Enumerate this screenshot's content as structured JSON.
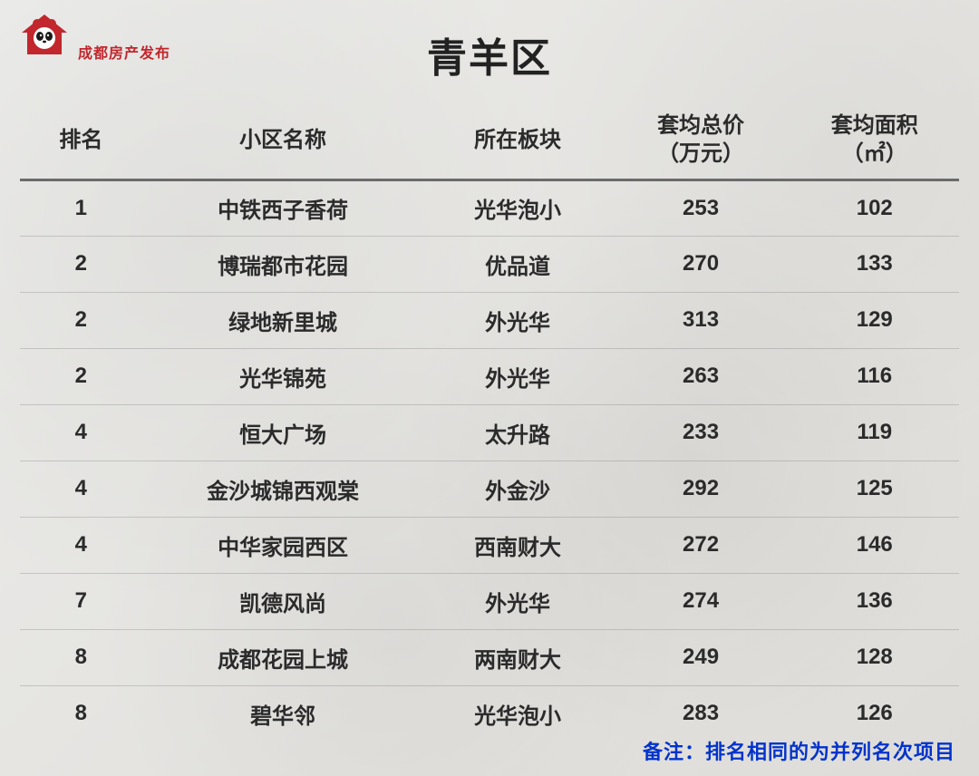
{
  "logo": {
    "brand_text": "成都房产发布"
  },
  "title": "青羊区",
  "columns": [
    {
      "key": "rank",
      "label": "排名",
      "class": "col-rank"
    },
    {
      "key": "name",
      "label": "小区名称",
      "class": "col-name"
    },
    {
      "key": "block",
      "label": "所在板块",
      "class": "col-block"
    },
    {
      "key": "price",
      "label": "套均总价\n（万元）",
      "class": "col-price"
    },
    {
      "key": "area",
      "label": "套均面积\n（㎡）",
      "class": "col-area"
    }
  ],
  "rows": [
    {
      "rank": "1",
      "name": "中铁西子香荷",
      "block": "光华泡小",
      "price": "253",
      "area": "102"
    },
    {
      "rank": "2",
      "name": "博瑞都市花园",
      "block": "优品道",
      "price": "270",
      "area": "133"
    },
    {
      "rank": "2",
      "name": "绿地新里城",
      "block": "外光华",
      "price": "313",
      "area": "129"
    },
    {
      "rank": "2",
      "name": "光华锦苑",
      "block": "外光华",
      "price": "263",
      "area": "116"
    },
    {
      "rank": "4",
      "name": "恒大广场",
      "block": "太升路",
      "price": "233",
      "area": "119"
    },
    {
      "rank": "4",
      "name": "金沙城锦西观棠",
      "block": "外金沙",
      "price": "292",
      "area": "125"
    },
    {
      "rank": "4",
      "name": "中华家园西区",
      "block": "西南财大",
      "price": "272",
      "area": "146"
    },
    {
      "rank": "7",
      "name": "凯德风尚",
      "block": "外光华",
      "price": "274",
      "area": "136"
    },
    {
      "rank": "8",
      "name": "成都花园上城",
      "block": "两南财大",
      "price": "249",
      "area": "128"
    },
    {
      "rank": "8",
      "name": "碧华邻",
      "block": "光华泡小",
      "price": "283",
      "area": "126"
    }
  ],
  "footnote": "备注：排名相同的为并列名次项目",
  "style": {
    "title_fontsize": 44,
    "header_fontsize": 24,
    "cell_fontsize": 24,
    "footnote_fontsize": 22,
    "text_color": "#2b2b2b",
    "footnote_color": "#0033cc",
    "logo_color": "#c1272d",
    "header_border_color": "#6b6b6b",
    "row_border_color": "rgba(90,90,90,0.25)",
    "background_base": "#e8e6e2"
  }
}
